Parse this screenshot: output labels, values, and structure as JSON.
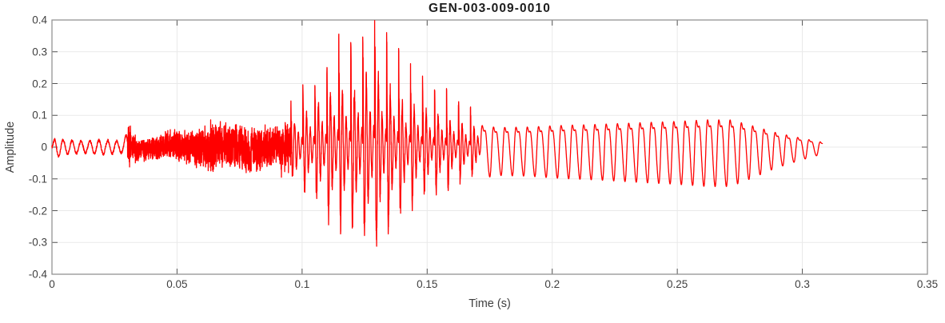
{
  "chart_data": {
    "type": "line",
    "title": "GEN-003-009-0010",
    "xlabel": "Time (s)",
    "ylabel": "Amplitude",
    "xlim": [
      0,
      0.35
    ],
    "ylim": [
      -0.4,
      0.4
    ],
    "xticks": [
      0,
      0.05,
      0.1,
      0.15,
      0.2,
      0.25,
      0.3,
      0.35
    ],
    "xtick_labels": [
      "0",
      "0.05",
      "0.1",
      "0.15",
      "0.2",
      "0.25",
      "0.3",
      "0.35"
    ],
    "yticks": [
      0.4,
      0.3,
      0.2,
      0.1,
      0,
      -0.1,
      -0.2,
      -0.3,
      -0.4
    ],
    "ytick_labels": [
      "0.4",
      "0.3",
      "0.2",
      "0.1",
      "0",
      "-0.1",
      "-0.2",
      "-0.3",
      "-0.4"
    ],
    "grid": true,
    "box": true,
    "legend": null,
    "line_color": "#ff0000",
    "grid_color": "#e9e9e9",
    "box_color": "#8f8f8f",
    "tick_color": "#555555",
    "label_color": "#3f3f3f",
    "title_color": "#1d1d1d",
    "background_color": "#ffffff",
    "signal": {
      "description": "speech-like waveform: soft 280 Hz onset tone, fricative noise band, strong voiced burst peaking +0.4/-0.31 near t=0.128 s, then ~222 Hz vowel swelling to about 0.12 and decaying to silence at t=0.308 s",
      "duration_s": 0.308,
      "sample_step_s": 5e-05,
      "peak_amplitude": 0.4,
      "min_amplitude": -0.31,
      "segments": [
        {
          "name": "onset-tone",
          "type": "sine",
          "t": [
            0,
            0.0302
          ],
          "freq_hz": 280,
          "jitter": 0.004,
          "envelope": [
            [
              0,
              0.006
            ],
            [
              0.0015,
              0.032
            ],
            [
              0.005,
              0.022
            ],
            [
              0.012,
              0.018
            ],
            [
              0.02,
              0.022
            ],
            [
              0.0285,
              0.018
            ],
            [
              0.0302,
              0.05
            ]
          ]
        },
        {
          "name": "fricative-noise",
          "type": "noise",
          "t": [
            0.0302,
            0.0955
          ],
          "wobble_hz": 47,
          "wobble_amp": 0.008,
          "envelope": [
            [
              0.0302,
              0.09
            ],
            [
              0.032,
              0.055
            ],
            [
              0.036,
              0.038
            ],
            [
              0.042,
              0.042
            ],
            [
              0.048,
              0.05
            ],
            [
              0.054,
              0.06
            ],
            [
              0.06,
              0.075
            ],
            [
              0.066,
              0.085
            ],
            [
              0.072,
              0.08
            ],
            [
              0.078,
              0.085
            ],
            [
              0.084,
              0.075
            ],
            [
              0.09,
              0.072
            ],
            [
              0.0955,
              0.1
            ]
          ]
        },
        {
          "name": "voiced-burst",
          "type": "pitch-pulses",
          "t": [
            0.0955,
            0.1715
          ],
          "pitch_hz": 209,
          "ring_cycles": 3.2,
          "decay": 0.5,
          "noise_fraction": 0.2,
          "envelope": [
            [
              0.0955,
              0.13
            ],
            [
              0.1,
              0.18
            ],
            [
              0.105,
              0.22
            ],
            [
              0.11,
              0.28
            ],
            [
              0.1145,
              0.34
            ],
            [
              0.119,
              0.31
            ],
            [
              0.1235,
              0.36
            ],
            [
              0.1285,
              0.42
            ],
            [
              0.133,
              0.35
            ],
            [
              0.1375,
              0.29
            ],
            [
              0.1425,
              0.24
            ],
            [
              0.1475,
              0.21
            ],
            [
              0.1525,
              0.19
            ],
            [
              0.1575,
              0.17
            ],
            [
              0.1625,
              0.145
            ],
            [
              0.167,
              0.12
            ],
            [
              0.1715,
              0.105
            ]
          ]
        },
        {
          "name": "vowel",
          "type": "harmonic",
          "t": [
            0.1715,
            0.308
          ],
          "pitch_hz": 222,
          "harmonics": [
            [
              1,
              0.8,
              0
            ],
            [
              2,
              0.24,
              1.15
            ],
            [
              3,
              0.07,
              0.5
            ]
          ],
          "envelope": [
            [
              0.1715,
              0.1
            ],
            [
              0.178,
              0.09
            ],
            [
              0.19,
              0.092
            ],
            [
              0.205,
              0.1
            ],
            [
              0.22,
              0.105
            ],
            [
              0.235,
              0.112
            ],
            [
              0.25,
              0.118
            ],
            [
              0.262,
              0.125
            ],
            [
              0.271,
              0.125
            ],
            [
              0.277,
              0.108
            ],
            [
              0.283,
              0.088
            ],
            [
              0.289,
              0.068
            ],
            [
              0.295,
              0.052
            ],
            [
              0.3,
              0.04
            ],
            [
              0.3045,
              0.03
            ],
            [
              0.308,
              0.022
            ]
          ]
        }
      ]
    }
  }
}
